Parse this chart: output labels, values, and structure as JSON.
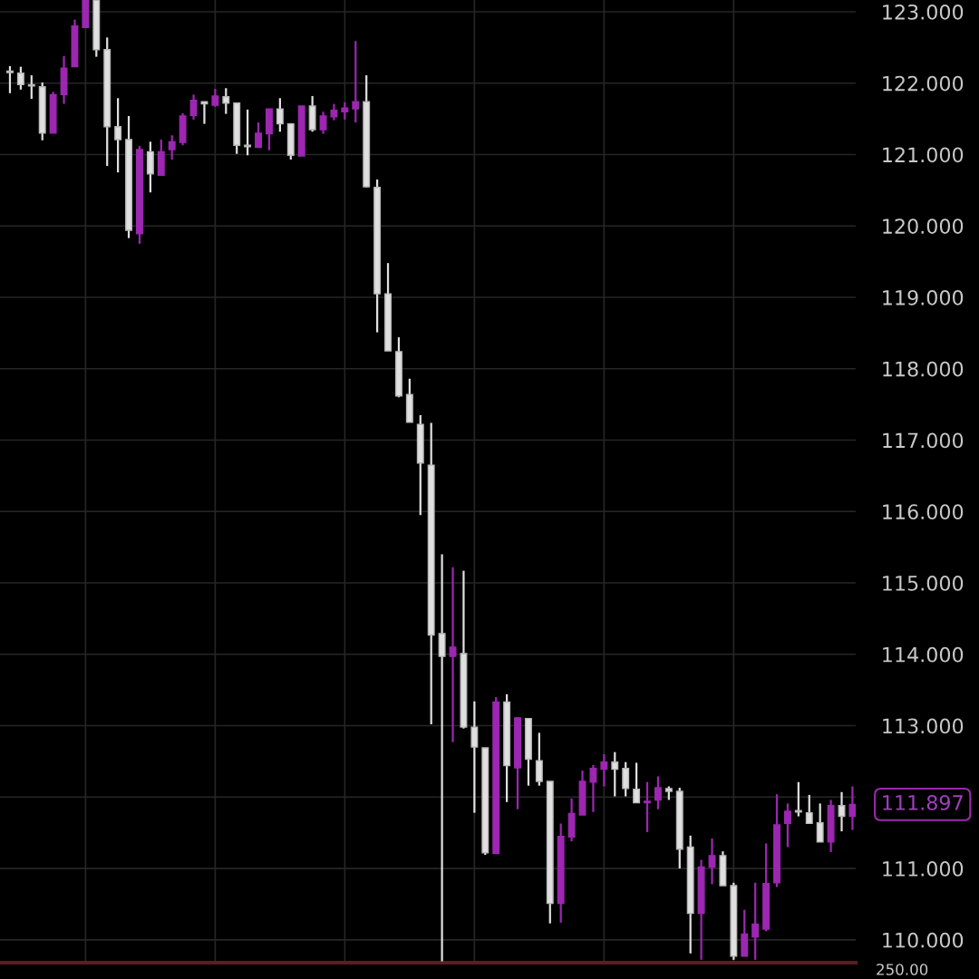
{
  "chart_data": {
    "type": "candlestick",
    "categories": [
      null,
      null,
      null,
      null,
      null,
      null,
      null,
      null,
      null,
      null,
      null,
      null,
      null,
      null,
      null,
      null,
      null,
      null,
      null,
      null,
      null,
      null,
      null,
      null,
      null,
      null,
      null,
      null,
      null,
      null,
      null,
      null,
      null,
      null,
      null,
      null,
      null,
      null,
      null,
      null,
      null,
      null,
      null,
      null,
      null,
      null,
      null,
      null,
      null,
      null,
      null,
      null,
      null,
      null,
      null,
      null,
      null,
      null,
      null,
      null,
      null,
      null,
      null,
      null,
      null,
      null,
      null,
      null,
      null,
      null,
      null,
      null,
      null,
      null,
      null,
      null,
      null,
      null,
      null
    ],
    "ohlc": [
      [
        122.16,
        122.24,
        121.86,
        122.15
      ],
      [
        122.14,
        122.23,
        121.91,
        121.98
      ],
      [
        121.97,
        122.11,
        121.78,
        121.96
      ],
      [
        121.95,
        122.01,
        121.2,
        121.3
      ],
      [
        121.3,
        121.88,
        121.3,
        121.84
      ],
      [
        121.84,
        122.38,
        121.71,
        122.21
      ],
      [
        122.23,
        122.89,
        122.23,
        122.8
      ],
      [
        122.78,
        123.16,
        122.78,
        123.16
      ],
      [
        123.16,
        123.16,
        122.37,
        122.47
      ],
      [
        122.47,
        122.64,
        120.84,
        121.39
      ],
      [
        121.39,
        121.79,
        120.75,
        121.21
      ],
      [
        121.21,
        121.54,
        119.83,
        119.94
      ],
      [
        119.89,
        121.12,
        119.75,
        121.07
      ],
      [
        121.04,
        121.18,
        120.47,
        120.73
      ],
      [
        120.71,
        121.21,
        120.71,
        121.04
      ],
      [
        121.07,
        121.27,
        120.93,
        121.18
      ],
      [
        121.17,
        121.58,
        121.13,
        121.54
      ],
      [
        121.55,
        121.84,
        121.49,
        121.76
      ],
      [
        121.74,
        121.74,
        121.43,
        121.71
      ],
      [
        121.69,
        121.92,
        121.67,
        121.82
      ],
      [
        121.81,
        121.93,
        121.57,
        121.72
      ],
      [
        121.72,
        121.73,
        121.01,
        121.13
      ],
      [
        121.12,
        121.63,
        120.99,
        121.11
      ],
      [
        121.1,
        121.45,
        121.1,
        121.3
      ],
      [
        121.29,
        121.64,
        121.06,
        121.64
      ],
      [
        121.64,
        121.79,
        121.32,
        121.43
      ],
      [
        121.43,
        121.44,
        120.93,
        120.99
      ],
      [
        120.98,
        121.68,
        120.98,
        121.68
      ],
      [
        121.68,
        121.82,
        121.32,
        121.35
      ],
      [
        121.35,
        121.6,
        121.29,
        121.54
      ],
      [
        121.53,
        121.71,
        121.48,
        121.62
      ],
      [
        121.6,
        121.73,
        121.49,
        121.65
      ],
      [
        121.64,
        122.59,
        121.45,
        121.74
      ],
      [
        121.74,
        122.11,
        120.54,
        120.55
      ],
      [
        120.54,
        120.65,
        118.51,
        119.05
      ],
      [
        119.05,
        119.48,
        118.25,
        118.25
      ],
      [
        118.24,
        118.44,
        117.6,
        117.62
      ],
      [
        117.64,
        117.86,
        117.25,
        117.25
      ],
      [
        117.22,
        117.35,
        115.95,
        116.68
      ],
      [
        116.65,
        117.24,
        113.02,
        114.27
      ],
      [
        114.29,
        115.4,
        109.7,
        113.97
      ],
      [
        113.97,
        115.22,
        112.77,
        114.1
      ],
      [
        114.01,
        115.17,
        112.96,
        112.98
      ],
      [
        112.98,
        113.34,
        111.78,
        112.7
      ],
      [
        112.69,
        112.69,
        111.19,
        111.22
      ],
      [
        111.21,
        113.4,
        111.21,
        113.33
      ],
      [
        113.33,
        113.44,
        111.93,
        112.44
      ],
      [
        112.41,
        113.12,
        111.83,
        113.11
      ],
      [
        113.1,
        113.1,
        112.16,
        112.53
      ],
      [
        112.51,
        112.9,
        112.16,
        112.22
      ],
      [
        112.22,
        112.22,
        110.23,
        110.51
      ],
      [
        110.51,
        111.63,
        110.24,
        111.45
      ],
      [
        111.44,
        111.98,
        111.38,
        111.77
      ],
      [
        111.75,
        112.37,
        111.75,
        112.22
      ],
      [
        112.21,
        112.45,
        111.79,
        112.4
      ],
      [
        112.39,
        112.6,
        112.15,
        112.49
      ],
      [
        112.49,
        112.63,
        112.01,
        112.39
      ],
      [
        112.4,
        112.49,
        112.01,
        112.12
      ],
      [
        112.11,
        112.48,
        111.92,
        111.92
      ],
      [
        111.92,
        112.21,
        111.51,
        111.94
      ],
      [
        111.96,
        112.29,
        111.83,
        112.13
      ],
      [
        112.12,
        112.15,
        111.96,
        112.08
      ],
      [
        112.08,
        112.13,
        111.0,
        111.27
      ],
      [
        111.3,
        111.46,
        109.81,
        110.37
      ],
      [
        110.37,
        111.12,
        109.72,
        111.02
      ],
      [
        111.02,
        111.42,
        110.78,
        111.18
      ],
      [
        111.18,
        111.24,
        110.76,
        110.76
      ],
      [
        110.76,
        110.8,
        109.72,
        109.77
      ],
      [
        109.77,
        110.42,
        109.77,
        110.08
      ],
      [
        110.04,
        110.8,
        109.72,
        110.22
      ],
      [
        110.15,
        111.35,
        110.12,
        110.79
      ],
      [
        110.8,
        112.04,
        110.74,
        111.61
      ],
      [
        111.63,
        111.91,
        111.3,
        111.8
      ],
      [
        111.8,
        112.21,
        111.73,
        111.79
      ],
      [
        111.78,
        112.03,
        111.63,
        111.63
      ],
      [
        111.64,
        111.91,
        111.37,
        111.37
      ],
      [
        111.37,
        111.96,
        111.23,
        111.88
      ],
      [
        111.88,
        112.07,
        111.52,
        111.73
      ],
      [
        111.73,
        112.15,
        111.54,
        111.897
      ]
    ],
    "colors": [
      "#e0e0e0",
      "#e0e0e0",
      "#e0e0e0",
      "#e0e0e0",
      "#9c27b0",
      "#9c27b0",
      "#9c27b0",
      "#9c27b0",
      "#e0e0e0",
      "#e0e0e0",
      "#e0e0e0",
      "#e0e0e0",
      "#9c27b0",
      "#e0e0e0",
      "#9c27b0",
      "#9c27b0",
      "#9c27b0",
      "#9c27b0",
      "#e0e0e0",
      "#9c27b0",
      "#e0e0e0",
      "#e0e0e0",
      "#e0e0e0",
      "#9c27b0",
      "#9c27b0",
      "#e0e0e0",
      "#e0e0e0",
      "#9c27b0",
      "#e0e0e0",
      "#9c27b0",
      "#9c27b0",
      "#9c27b0",
      "#9c27b0",
      "#e0e0e0",
      "#e0e0e0",
      "#e0e0e0",
      "#e0e0e0",
      "#e0e0e0",
      "#e0e0e0",
      "#e0e0e0",
      "#e0e0e0",
      "#9c27b0",
      "#e0e0e0",
      "#e0e0e0",
      "#e0e0e0",
      "#9c27b0",
      "#e0e0e0",
      "#9c27b0",
      "#e0e0e0",
      "#e0e0e0",
      "#e0e0e0",
      "#9c27b0",
      "#9c27b0",
      "#9c27b0",
      "#9c27b0",
      "#9c27b0",
      "#e0e0e0",
      "#e0e0e0",
      "#e0e0e0",
      "#9c27b0",
      "#9c27b0",
      "#e0e0e0",
      "#e0e0e0",
      "#e0e0e0",
      "#9c27b0",
      "#9c27b0",
      "#e0e0e0",
      "#e0e0e0",
      "#9c27b0",
      "#9c27b0",
      "#9c27b0",
      "#9c27b0",
      "#9c27b0",
      "#e0e0e0",
      "#e0e0e0",
      "#e0e0e0",
      "#9c27b0",
      "#e0e0e0",
      "#9c27b0"
    ],
    "ylim": [
      109.68,
      123.165
    ],
    "yticks": [
      {
        "value": 110,
        "label": "110.000"
      },
      {
        "value": 111,
        "label": "111.000"
      },
      {
        "value": 112,
        "label": null
      },
      {
        "value": 113,
        "label": "113.000"
      },
      {
        "value": 114,
        "label": "114.000"
      },
      {
        "value": 115,
        "label": "115.000"
      },
      {
        "value": 116,
        "label": "116.000"
      },
      {
        "value": 117,
        "label": "117.000"
      },
      {
        "value": 118,
        "label": "118.000"
      },
      {
        "value": 119,
        "label": "119.000"
      },
      {
        "value": 120,
        "label": "120.000"
      },
      {
        "value": 121,
        "label": "121.000"
      },
      {
        "value": 122,
        "label": "122.000"
      },
      {
        "value": 123,
        "label": "123.000"
      }
    ],
    "grid": true,
    "annotations": [
      "111.897",
      "250.00"
    ]
  }
}
